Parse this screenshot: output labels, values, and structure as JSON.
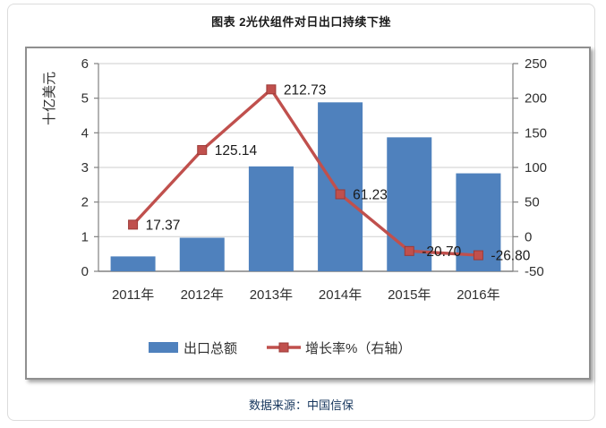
{
  "page": {
    "title": "图表 2光伏组件对日出口持续下挫",
    "source": "数据来源：中国信保"
  },
  "chart_data": {
    "type": "bar+line",
    "title": "图表 2光伏组件对日出口持续下挫",
    "categories": [
      "2011年",
      "2012年",
      "2013年",
      "2014年",
      "2015年",
      "2016年"
    ],
    "series": [
      {
        "name": "出口总额",
        "type": "bar",
        "axis": "left",
        "color": "#4F81BD",
        "values": [
          0.43,
          0.97,
          3.03,
          4.88,
          3.87,
          2.83
        ]
      },
      {
        "name": "增长率%（右轴）",
        "type": "line",
        "axis": "right",
        "color": "#C0504D",
        "marker": "square",
        "values": [
          17.37,
          125.14,
          212.73,
          61.23,
          -20.7,
          -26.8
        ],
        "point_labels": [
          "17.37",
          "125.14",
          "212.73",
          "61.23",
          "-20.70",
          "-26.80"
        ]
      }
    ],
    "left_axis": {
      "title": "十亿美元",
      "min": 0,
      "max": 6,
      "step": 1,
      "ticks": [
        "0",
        "1",
        "2",
        "3",
        "4",
        "5",
        "6"
      ]
    },
    "right_axis": {
      "min": -50,
      "max": 250,
      "step": 50,
      "ticks": [
        "-50",
        "0",
        "50",
        "100",
        "150",
        "200",
        "250"
      ]
    },
    "grid": true,
    "legend_position": "bottom",
    "colors": {
      "grid": "#D6D6D6",
      "axis": "#808080",
      "tick_text": "#303030",
      "point_label_text": "#1a1a1a",
      "marker_edge": "#9c3a37"
    },
    "source": "数据来源：中国信保"
  }
}
